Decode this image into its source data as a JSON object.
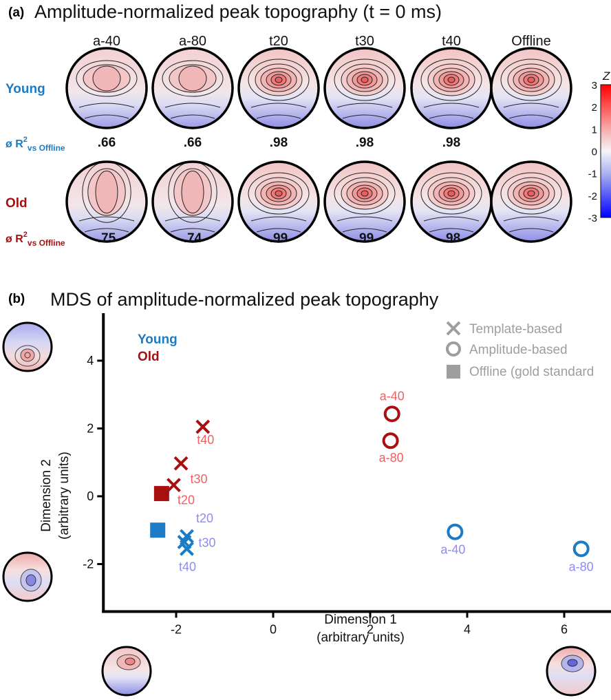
{
  "panel_a": {
    "letter": "(a)",
    "title": "Amplitude-normalized peak topography (t = 0 ms)",
    "columns": [
      "a-40",
      "a-80",
      "t20",
      "t30",
      "t40",
      "Offline"
    ],
    "groups": [
      {
        "name": "Young",
        "r2_prefix": "ø R",
        "r2_sup": "2",
        "r2_sub": "vs Offline",
        "r2_values": [
          ".66",
          ".66",
          ".98",
          ".98",
          ".98"
        ],
        "color": "#1b7bc4"
      },
      {
        "name": "Old",
        "r2_prefix": "ø R",
        "r2_sup": "2",
        "r2_sub": "vs Offline",
        "r2_values": [
          ".75",
          ".74",
          ".99",
          ".99",
          ".98"
        ],
        "color": "#a81010"
      }
    ],
    "colorbar": {
      "label": "Z",
      "ticks": [
        "3",
        "2",
        "1",
        "0",
        "-1",
        "-2",
        "-3"
      ]
    }
  },
  "panel_b": {
    "letter": "(b)",
    "title": "MDS of amplitude-normalized peak topography",
    "legend_groups": [
      {
        "name": "Young",
        "color": "#1b7bc4"
      },
      {
        "name": "Old",
        "color": "#a81010"
      }
    ],
    "legend_markers": [
      {
        "marker": "cross",
        "label": "Template-based"
      },
      {
        "marker": "circle",
        "label": "Amplitude-based"
      },
      {
        "marker": "square",
        "label": "Offline (gold standard"
      }
    ]
  },
  "chart_data": {
    "type": "scatter",
    "title": "MDS of amplitude-normalized peak topography",
    "xlabel": "Dimension 1\n(arbitrary units)",
    "ylabel": "Dimension 2\n(arbitrary units)",
    "xlim": [
      -3.5,
      7
    ],
    "ylim": [
      -3.4,
      5.4
    ],
    "xticks": [
      -2,
      0,
      2,
      4,
      6
    ],
    "yticks": [
      -2,
      0,
      2,
      4
    ],
    "series": [
      {
        "name": "Old",
        "color": "#a81010",
        "label_color": "#f06060",
        "points": [
          {
            "label": "t40",
            "marker": "cross",
            "x": -1.45,
            "y": 2.05
          },
          {
            "label": "t30",
            "marker": "cross",
            "x": -1.9,
            "y": 0.97
          },
          {
            "label": "t20",
            "marker": "cross",
            "x": -2.05,
            "y": 0.33
          },
          {
            "label": "",
            "marker": "square",
            "x": -2.3,
            "y": 0.08
          },
          {
            "label": "a-40",
            "marker": "circle",
            "x": 2.45,
            "y": 2.43
          },
          {
            "label": "a-80",
            "marker": "circle",
            "x": 2.42,
            "y": 1.64
          }
        ]
      },
      {
        "name": "Young",
        "color": "#1b7bc4",
        "label_color": "#8c8cf0",
        "points": [
          {
            "label": "t20",
            "marker": "cross",
            "x": -1.78,
            "y": -1.18
          },
          {
            "label": "t30",
            "marker": "cross",
            "x": -1.83,
            "y": -1.35
          },
          {
            "label": "t40",
            "marker": "cross",
            "x": -1.78,
            "y": -1.55
          },
          {
            "label": "",
            "marker": "square",
            "x": -2.38,
            "y": -1.0
          },
          {
            "label": "a-40",
            "marker": "circle",
            "x": 3.75,
            "y": -1.05
          },
          {
            "label": "a-80",
            "marker": "circle",
            "x": 6.35,
            "y": -1.55
          }
        ]
      }
    ]
  }
}
